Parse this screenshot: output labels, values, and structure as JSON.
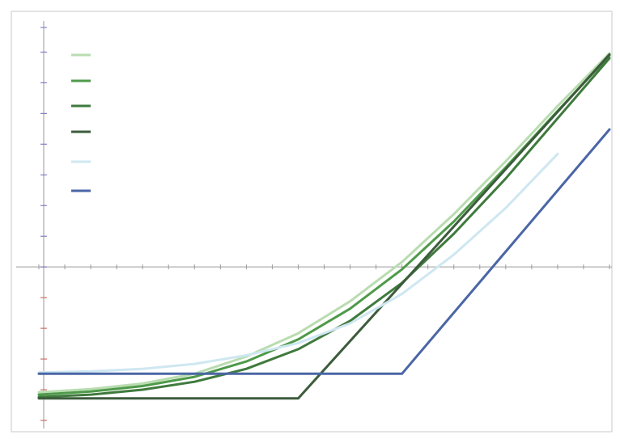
{
  "colors": {
    "background": "#ffffff",
    "border": "#c8c8c8",
    "axis": "#9a9a9a",
    "tick_x": "#5a5a5a",
    "tick_y_positive": "#6b6bb8",
    "tick_y_negative": "#c0584e"
  },
  "chart_data": {
    "type": "line",
    "title": "",
    "xlabel": "",
    "ylabel": "",
    "xlim": [
      1.25,
      1.36
    ],
    "ylim": [
      -125,
      195
    ],
    "x_ticks": [
      1.25,
      1.255,
      1.26,
      1.265,
      1.27,
      1.275,
      1.28,
      1.285,
      1.29,
      1.295,
      1.3,
      1.305,
      1.31,
      1.315,
      1.32,
      1.325,
      1.33,
      1.335,
      1.34,
      1.345,
      1.35,
      1.355,
      1.36
    ],
    "y_ticks": [
      -125,
      -100,
      -75,
      -50,
      -25,
      0,
      25,
      50,
      75,
      100,
      125,
      150,
      175,
      195
    ],
    "grid": false,
    "legend": "top-left",
    "series": [
      {
        "color": "#b9dcb0",
        "dash": "none",
        "points": [
          [
            1.25,
            -102
          ],
          [
            1.26,
            -99.5
          ],
          [
            1.27,
            -95
          ],
          [
            1.28,
            -87
          ],
          [
            1.29,
            -73
          ],
          [
            1.3,
            -54
          ],
          [
            1.31,
            -28
          ],
          [
            1.32,
            4
          ],
          [
            1.33,
            43
          ],
          [
            1.34,
            86
          ],
          [
            1.35,
            131
          ],
          [
            1.36,
            174
          ]
        ]
      },
      {
        "color": "#4e9a4a",
        "dash": "none",
        "points": [
          [
            1.25,
            -104
          ],
          [
            1.26,
            -101.5
          ],
          [
            1.27,
            -97
          ],
          [
            1.28,
            -89.5
          ],
          [
            1.29,
            -77
          ],
          [
            1.3,
            -59
          ],
          [
            1.31,
            -34
          ],
          [
            1.32,
            -2
          ],
          [
            1.33,
            37
          ],
          [
            1.34,
            81
          ],
          [
            1.35,
            127
          ],
          [
            1.36,
            172
          ]
        ]
      },
      {
        "color": "#3f7a3d",
        "dash": "none",
        "points": [
          [
            1.25,
            -106
          ],
          [
            1.26,
            -104
          ],
          [
            1.27,
            -100
          ],
          [
            1.28,
            -93.5
          ],
          [
            1.29,
            -83
          ],
          [
            1.3,
            -67
          ],
          [
            1.31,
            -44
          ],
          [
            1.32,
            -13
          ],
          [
            1.33,
            27
          ],
          [
            1.34,
            72
          ],
          [
            1.35,
            121
          ],
          [
            1.36,
            170
          ]
        ]
      },
      {
        "color": "#3c5c3c",
        "dash": "none",
        "points": [
          [
            1.25,
            -107
          ],
          [
            1.3,
            -107
          ],
          [
            1.36,
            173
          ]
        ]
      },
      {
        "color": "#cfe7f1",
        "dash": "none",
        "points": [
          [
            1.25,
            -86
          ],
          [
            1.26,
            -85
          ],
          [
            1.27,
            -83
          ],
          [
            1.28,
            -79
          ],
          [
            1.29,
            -72
          ],
          [
            1.3,
            -62
          ],
          [
            1.31,
            -46
          ],
          [
            1.32,
            -22
          ],
          [
            1.33,
            10
          ],
          [
            1.34,
            48
          ],
          [
            1.35,
            92
          ]
        ]
      },
      {
        "color": "#4a66a6",
        "dash": "none",
        "points": [
          [
            1.25,
            -87
          ],
          [
            1.32,
            -87
          ],
          [
            1.36,
            112
          ]
        ]
      }
    ]
  }
}
